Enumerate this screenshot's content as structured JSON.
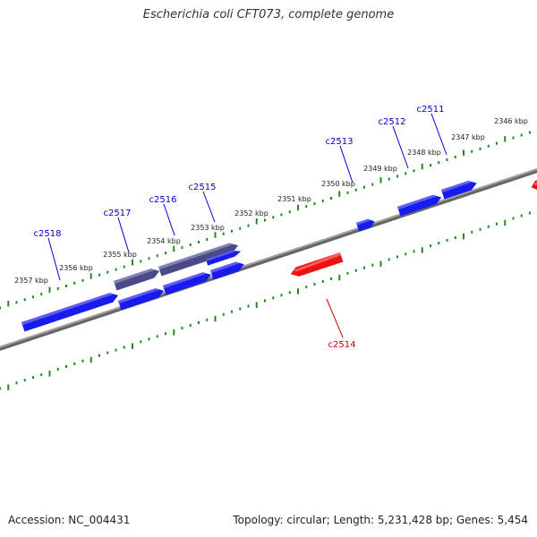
{
  "title": "Escherichia coli CFT073, complete genome",
  "footer": {
    "accession": "Accession: NC_004431",
    "topology": "Topology: circular; Length: 5,231,428 bp; Genes: 5,454"
  },
  "colors": {
    "forward": "#1a1aee",
    "forward_light": "#6b6bff",
    "reverse": "#ee1111",
    "reverse_light": "#ff6a6a",
    "muted": "#4a4a88",
    "muted_light": "#8a8abd",
    "backbone": "#808080",
    "tick": "#228822",
    "label_forward": "#0000cc",
    "label_reverse": "#cc0000"
  },
  "kbp_labels": [
    "2346 kbp",
    "2347 kbp",
    "2348 kbp",
    "2349 kbp",
    "2350 kbp",
    "2351 kbp",
    "2352 kbp",
    "2353 kbp",
    "2354 kbp",
    "2355 kbp",
    "2356 kbp",
    "2357 kbp"
  ],
  "gene_labels": [
    {
      "text": "c2511",
      "strand": "forward"
    },
    {
      "text": "c2512",
      "strand": "forward"
    },
    {
      "text": "c2513",
      "strand": "forward"
    },
    {
      "text": "c2515",
      "strand": "forward"
    },
    {
      "text": "c2516",
      "strand": "forward"
    },
    {
      "text": "c2517",
      "strand": "forward"
    },
    {
      "text": "c2518",
      "strand": "forward"
    },
    {
      "text": "c2514",
      "strand": "reverse"
    }
  ]
}
